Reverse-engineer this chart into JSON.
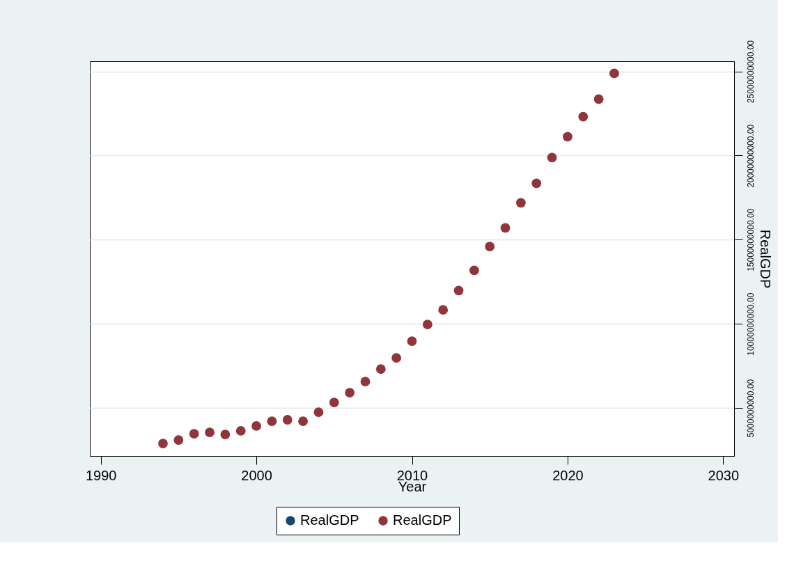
{
  "chart_data": {
    "type": "scatter",
    "xlabel": "Year",
    "ylabel": "RealGDP",
    "x": [
      1994,
      1995,
      1996,
      1997,
      1998,
      1999,
      2000,
      2001,
      2002,
      2003,
      2004,
      2005,
      2006,
      2007,
      2008,
      2009,
      2010,
      2011,
      2012,
      2013,
      2014,
      2015,
      2016,
      2017,
      2018,
      2019,
      2020,
      2021,
      2022,
      2023
    ],
    "series": [
      {
        "name": "RealGDP",
        "color": "#1a476f",
        "values": [
          null,
          null,
          null,
          null,
          null,
          null,
          null,
          null,
          null,
          null,
          null,
          null,
          null,
          null,
          null,
          null,
          null,
          null,
          null,
          null,
          null,
          null,
          null,
          null,
          null,
          null,
          null,
          null,
          null,
          null
        ]
      },
      {
        "name": "RealGDP",
        "color": "#90353b",
        "values": [
          2890000000,
          3100000000,
          3470000000,
          3550000000,
          3430000000,
          3640000000,
          3930000000,
          4210000000,
          4300000000,
          4210000000,
          4750000000,
          5330000000,
          5910000000,
          6570000000,
          7310000000,
          7980000000,
          8970000000,
          9960000000,
          10830000000,
          11980000000,
          13180000000,
          14590000000,
          15700000000,
          17190000000,
          18350000000,
          19880000000,
          21120000000,
          22310000000,
          23350000000,
          24880000000
        ]
      }
    ],
    "xlim": [
      1989.3,
      2030.7
    ],
    "xticks": [
      1990,
      2000,
      2010,
      2020,
      2030
    ],
    "ylim": [
      2150000000,
      25600000000
    ],
    "yticks": [
      {
        "value": 5000000000,
        "label": "5000000000.00"
      },
      {
        "value": 10000000000,
        "label": "10000000000.00"
      },
      {
        "value": 15000000000,
        "label": "15000000000.00"
      },
      {
        "value": 20000000000,
        "label": "20000000000.00"
      },
      {
        "value": 25000000000,
        "label": "25000000000.00"
      }
    ],
    "grid": "y",
    "legend": "bottom",
    "marker": "circle"
  }
}
